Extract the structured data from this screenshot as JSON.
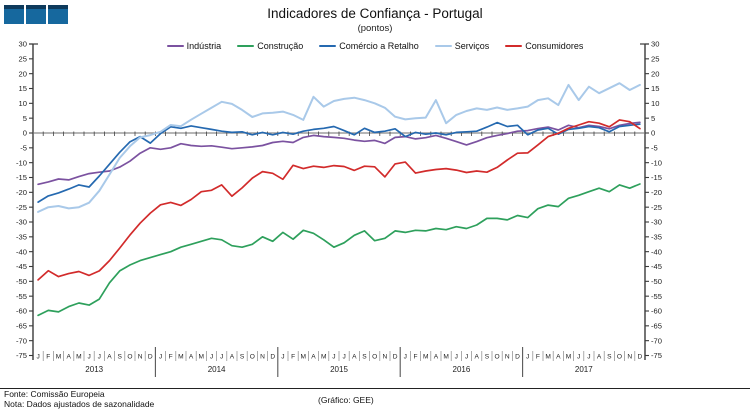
{
  "header": {
    "title": "Indicadores de Confiança - Portugal",
    "subtitle": "(pontos)"
  },
  "footer": {
    "source": "Fonte: Comissão Europeia",
    "note": "Nota: Dados ajustados de sazonalidade",
    "credit": "(Gráfico: GEE)"
  },
  "colors": {
    "logo_blue": "#16689E",
    "logo_blue_dark": "#0E3A5C",
    "zero_line": "#8a8a8a",
    "axis": "#3a3a3a"
  },
  "chart_data": {
    "type": "line",
    "title": "Indicadores de Confiança - Portugal",
    "subtitle": "(pontos)",
    "ylabel": "pontos",
    "ylim": [
      -75,
      30
    ],
    "ytick_step": 5,
    "grid": "zero-line-only",
    "legend_position": "top",
    "month_labels": [
      "J",
      "F",
      "M",
      "A",
      "M",
      "J",
      "J",
      "A",
      "S",
      "O",
      "N",
      "D"
    ],
    "years": [
      "2013",
      "2014",
      "2015",
      "2016",
      "2017"
    ],
    "x_range": "Jan 2013 - Dec 2017",
    "series": [
      {
        "name": "Indústria",
        "color": "#7B52A0",
        "values": [
          -17.3,
          -16.5,
          -15.5,
          -15.8,
          -14.7,
          -13.7,
          -13.2,
          -12.8,
          -11.5,
          -9.5,
          -6.8,
          -5.0,
          -5.5,
          -5.0,
          -3.6,
          -4.2,
          -4.5,
          -4.3,
          -4.8,
          -5.3,
          -5.0,
          -4.7,
          -4.2,
          -3.2,
          -2.8,
          -3.2,
          -1.5,
          -0.8,
          -1.2,
          -1.5,
          -1.8,
          -2.4,
          -2.8,
          -2.5,
          -3.5,
          -1.5,
          -1.2,
          -2.0,
          -1.6,
          -0.8,
          -1.8,
          -2.9,
          -4.0,
          -2.9,
          -1.6,
          -0.8,
          -0.2,
          0.6,
          0.8,
          1.5,
          2.0,
          1.0,
          2.6,
          1.8,
          2.6,
          2.2,
          1.4,
          2.6,
          3.2,
          3.6
        ]
      },
      {
        "name": "Construção",
        "color": "#2EA05C",
        "values": [
          -61.5,
          -59.8,
          -60.3,
          -58.5,
          -57.3,
          -58.0,
          -56.0,
          -50.5,
          -46.5,
          -44.5,
          -43.0,
          -42.0,
          -41.0,
          -40.0,
          -38.5,
          -37.5,
          -36.5,
          -35.5,
          -36.0,
          -38.0,
          -38.5,
          -37.5,
          -35.0,
          -36.5,
          -33.5,
          -35.8,
          -32.8,
          -33.8,
          -36.0,
          -38.5,
          -37.0,
          -34.5,
          -33.0,
          -36.3,
          -35.5,
          -33.0,
          -33.5,
          -32.8,
          -33.0,
          -32.2,
          -32.6,
          -31.6,
          -32.2,
          -31.0,
          -28.8,
          -28.8,
          -29.3,
          -27.8,
          -28.5,
          -25.5,
          -24.3,
          -24.8,
          -22.0,
          -21.0,
          -19.8,
          -18.6,
          -19.8,
          -17.5,
          -18.6,
          -17.2
        ]
      },
      {
        "name": "Comércio a Retalho",
        "color": "#2569B0",
        "values": [
          -23.3,
          -21.2,
          -20.2,
          -18.9,
          -17.5,
          -18.2,
          -14.5,
          -10.5,
          -6.5,
          -3.0,
          -1.2,
          -3.4,
          -0.2,
          2.1,
          1.6,
          2.4,
          1.8,
          1.2,
          0.6,
          0.2,
          0.4,
          -0.6,
          0.2,
          -0.6,
          0.2,
          -0.4,
          0.6,
          1.2,
          1.6,
          2.2,
          0.8,
          -0.6,
          1.6,
          0.2,
          0.6,
          1.4,
          -1.2,
          0.2,
          -0.4,
          0.0,
          -0.6,
          0.2,
          0.4,
          0.6,
          2.0,
          3.5,
          2.2,
          2.6,
          -0.6,
          1.0,
          1.6,
          -0.4,
          1.2,
          1.6,
          2.2,
          1.8,
          0.4,
          2.2,
          2.6,
          3.0
        ]
      },
      {
        "name": "Serviços",
        "color": "#A9C9E9",
        "values": [
          -26.6,
          -25.0,
          -24.6,
          -25.4,
          -25.0,
          -23.5,
          -19.5,
          -14.0,
          -8.4,
          -4.5,
          -1.5,
          -0.7,
          0.4,
          2.7,
          2.3,
          4.5,
          6.5,
          8.5,
          10.5,
          9.8,
          7.8,
          5.4,
          6.6,
          6.8,
          7.2,
          6.1,
          4.4,
          12.2,
          8.9,
          10.8,
          11.5,
          11.9,
          11.1,
          10.0,
          8.5,
          5.5,
          4.6,
          5.0,
          5.2,
          11.1,
          3.3,
          6.1,
          7.4,
          8.3,
          7.8,
          8.6,
          7.8,
          8.3,
          8.9,
          11.1,
          11.7,
          9.4,
          16.2,
          11.1,
          15.6,
          13.4,
          15.1,
          16.8,
          14.5,
          16.2
        ]
      },
      {
        "name": "Consumidores",
        "color": "#D22B2B",
        "values": [
          -49.5,
          -46.4,
          -48.4,
          -47.4,
          -46.7,
          -48.0,
          -46.5,
          -43.0,
          -38.8,
          -34.4,
          -30.4,
          -27.0,
          -24.2,
          -23.4,
          -24.4,
          -22.4,
          -19.8,
          -19.3,
          -17.5,
          -21.3,
          -18.5,
          -15.2,
          -13.0,
          -13.6,
          -15.6,
          -10.9,
          -12.0,
          -11.2,
          -11.6,
          -11.0,
          -11.3,
          -12.6,
          -11.2,
          -11.4,
          -14.8,
          -10.4,
          -9.8,
          -13.5,
          -12.8,
          -12.3,
          -12.0,
          -12.5,
          -13.3,
          -12.8,
          -13.2,
          -11.6,
          -9.1,
          -6.8,
          -6.7,
          -4.0,
          -1.2,
          -0.1,
          1.6,
          2.7,
          3.8,
          3.3,
          2.1,
          4.4,
          3.8,
          1.5
        ]
      }
    ]
  }
}
